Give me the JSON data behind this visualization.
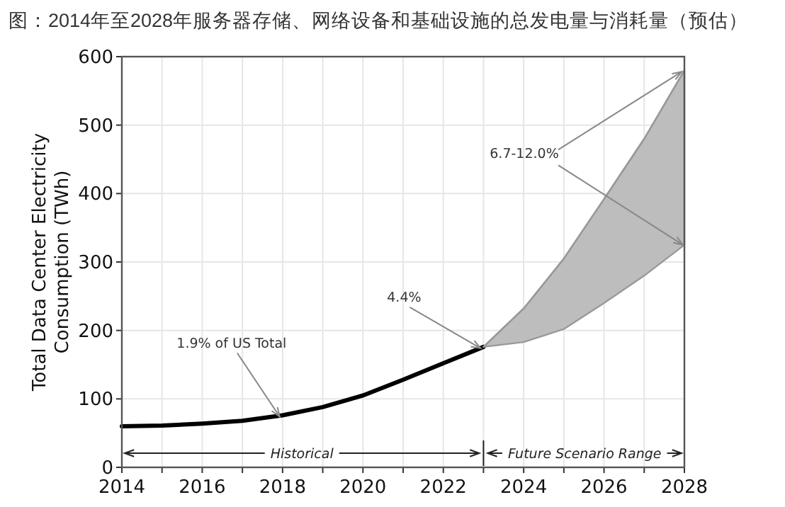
{
  "chart_data": {
    "type": "line",
    "title": "图：2014年至2028年服务器存储、网络设备和基础设施的总发电量与消耗量（预估）",
    "ylabel": "Total Data Center Electricity Consumption (TWh)",
    "xlim": [
      2014,
      2028
    ],
    "ylim": [
      0,
      600
    ],
    "xticks": [
      2014,
      {
        "value": 2015,
        "label": null
      },
      2016,
      {
        "value": 2017,
        "label": null
      },
      2018,
      {
        "value": 2019,
        "label": null
      },
      2020,
      {
        "value": 2021,
        "label": null
      },
      2022,
      {
        "value": 2023,
        "label": null
      },
      2024,
      {
        "value": 2025,
        "label": null
      },
      2026,
      {
        "value": 2027,
        "label": null
      },
      2028
    ],
    "yticks": [
      0,
      100,
      200,
      300,
      400,
      500,
      600
    ],
    "grid": true,
    "marker": "none",
    "line_style": "solid",
    "series": [
      {
        "color": "#000000",
        "x": [
          2014,
          2015,
          2016,
          2017,
          2018,
          2019,
          2020,
          2021,
          2022,
          2023
        ],
        "values": [
          60,
          61,
          64,
          68,
          76,
          88,
          105,
          128,
          152,
          176
        ]
      },
      {
        "type": "line",
        "color": "#999999",
        "x": [
          2023,
          2024,
          2025,
          2026,
          2027,
          2028
        ],
        "values": [
          176,
          232,
          305,
          392,
          480,
          580
        ],
        "lower": [
          176,
          183,
          202,
          240,
          280,
          325
        ],
        "upper": [
          176,
          232,
          305,
          392,
          480,
          580
        ]
      }
    ],
    "annotations": [
      {
        "text": "1.9% of US Total",
        "x": 2018,
        "y": 76
      },
      {
        "text": "4.4%",
        "x": 2023,
        "y": 176
      },
      {
        "text": "6.7-12.0%",
        "x": 2028,
        "y": 580
      },
      "Historical",
      "Future Scenario Range"
    ]
  }
}
